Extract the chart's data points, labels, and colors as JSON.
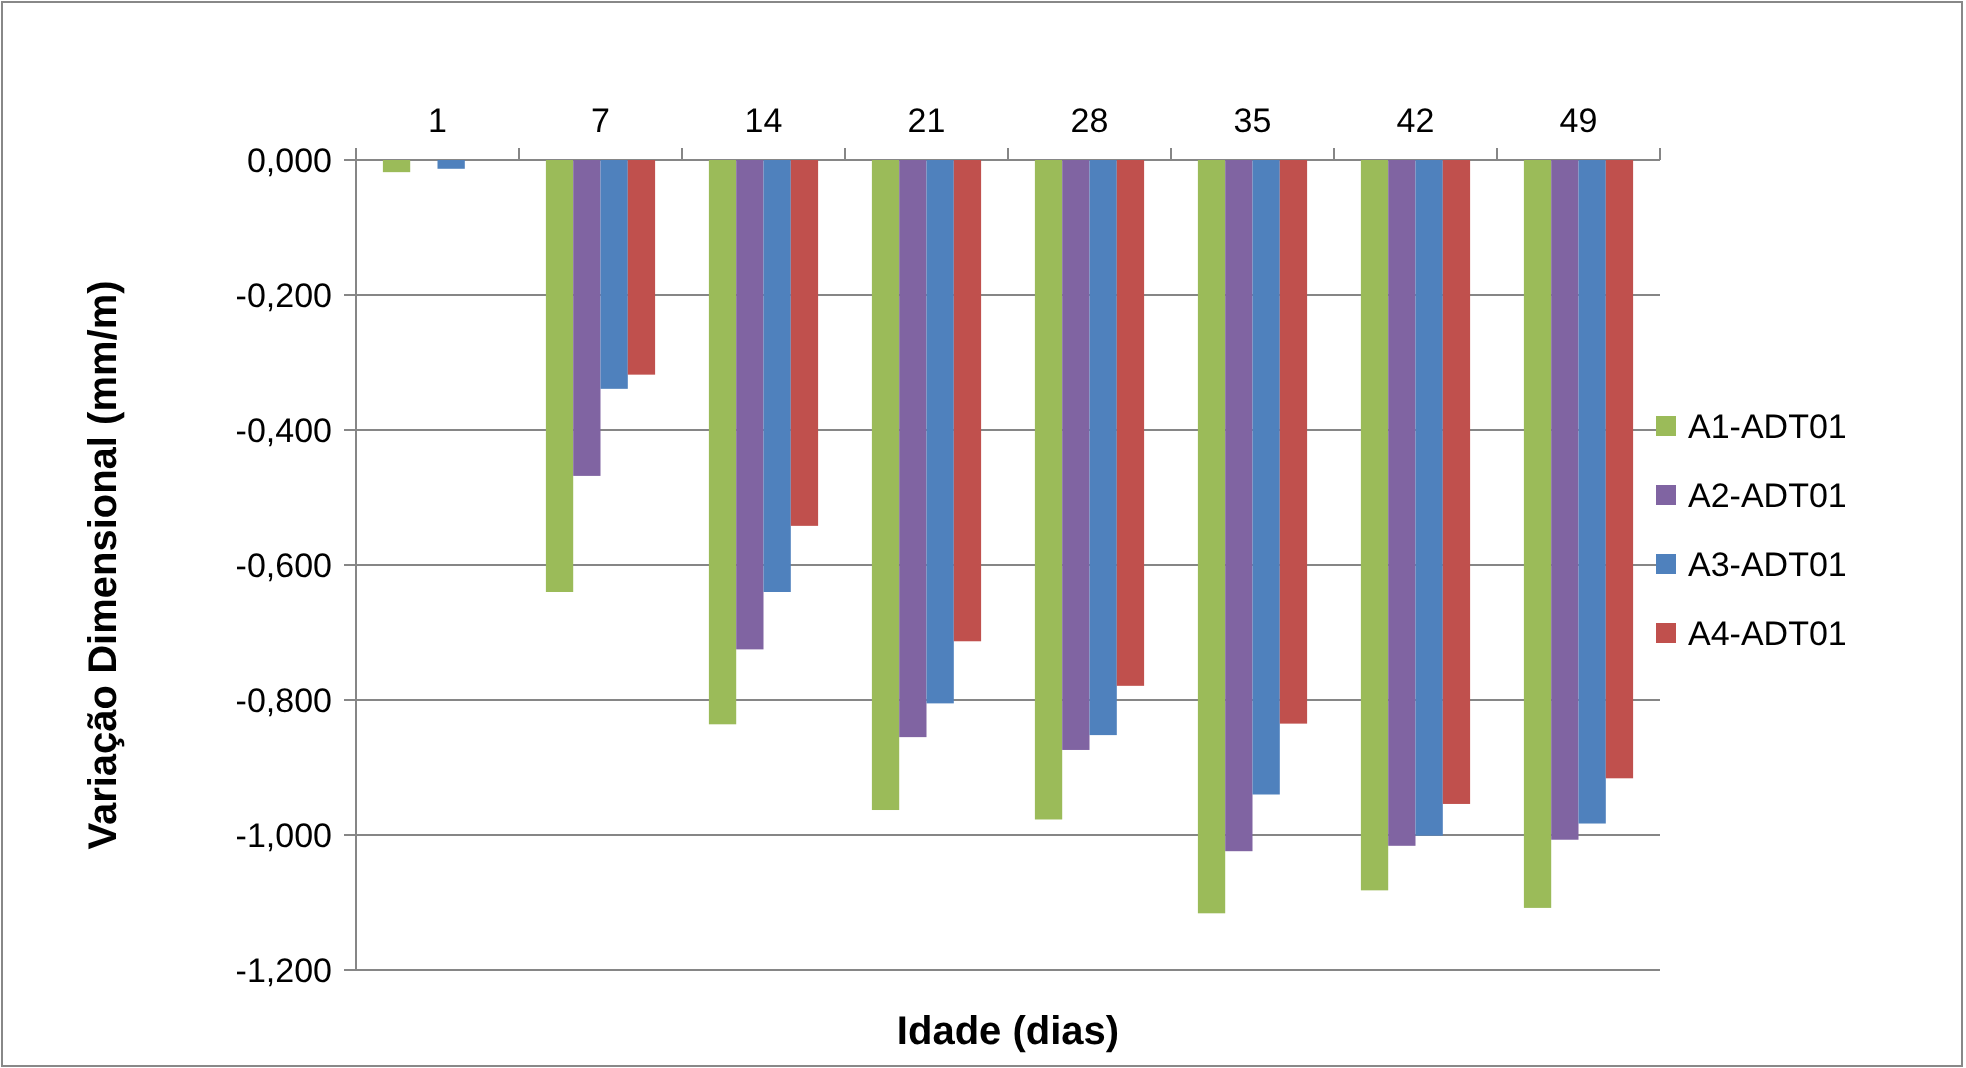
{
  "chart_data": {
    "type": "bar",
    "xlabel": "Idade (dias)",
    "ylabel": "Variação Dimensional (mm/m)",
    "categories": [
      "1",
      "7",
      "14",
      "21",
      "28",
      "35",
      "42",
      "49"
    ],
    "series": [
      {
        "name": "A1-ADT01",
        "color": "#9bbb59",
        "values": [
          -0.018,
          -0.64,
          -0.836,
          -0.963,
          -0.977,
          -1.116,
          -1.082,
          -1.108
        ]
      },
      {
        "name": "A2-ADT01",
        "color": "#8064a2",
        "values": [
          0,
          -0.468,
          -0.725,
          -0.855,
          -0.874,
          -1.024,
          -1.016,
          -1.007
        ]
      },
      {
        "name": "A3-ADT01",
        "color": "#4f81bd",
        "values": [
          -0.013,
          -0.339,
          -0.64,
          -0.805,
          -0.852,
          -0.94,
          -1.001,
          -0.983
        ]
      },
      {
        "name": "A4-ADT01",
        "color": "#c0504d",
        "values": [
          null,
          -0.318,
          -0.542,
          -0.713,
          -0.779,
          -0.835,
          -0.954,
          -0.916
        ]
      }
    ],
    "ylim": [
      -1.2,
      0
    ],
    "yticks": [
      {
        "value": 0,
        "label": "0,000"
      },
      {
        "value": -0.2,
        "label": "-0,200"
      },
      {
        "value": -0.4,
        "label": "-0,400"
      },
      {
        "value": -0.6,
        "label": "-0,600"
      },
      {
        "value": -0.8,
        "label": "-0,800"
      },
      {
        "value": -1,
        "label": "-1,000"
      },
      {
        "value": -1.2,
        "label": "-1,200"
      }
    ],
    "grid": "y",
    "legend": "right"
  }
}
